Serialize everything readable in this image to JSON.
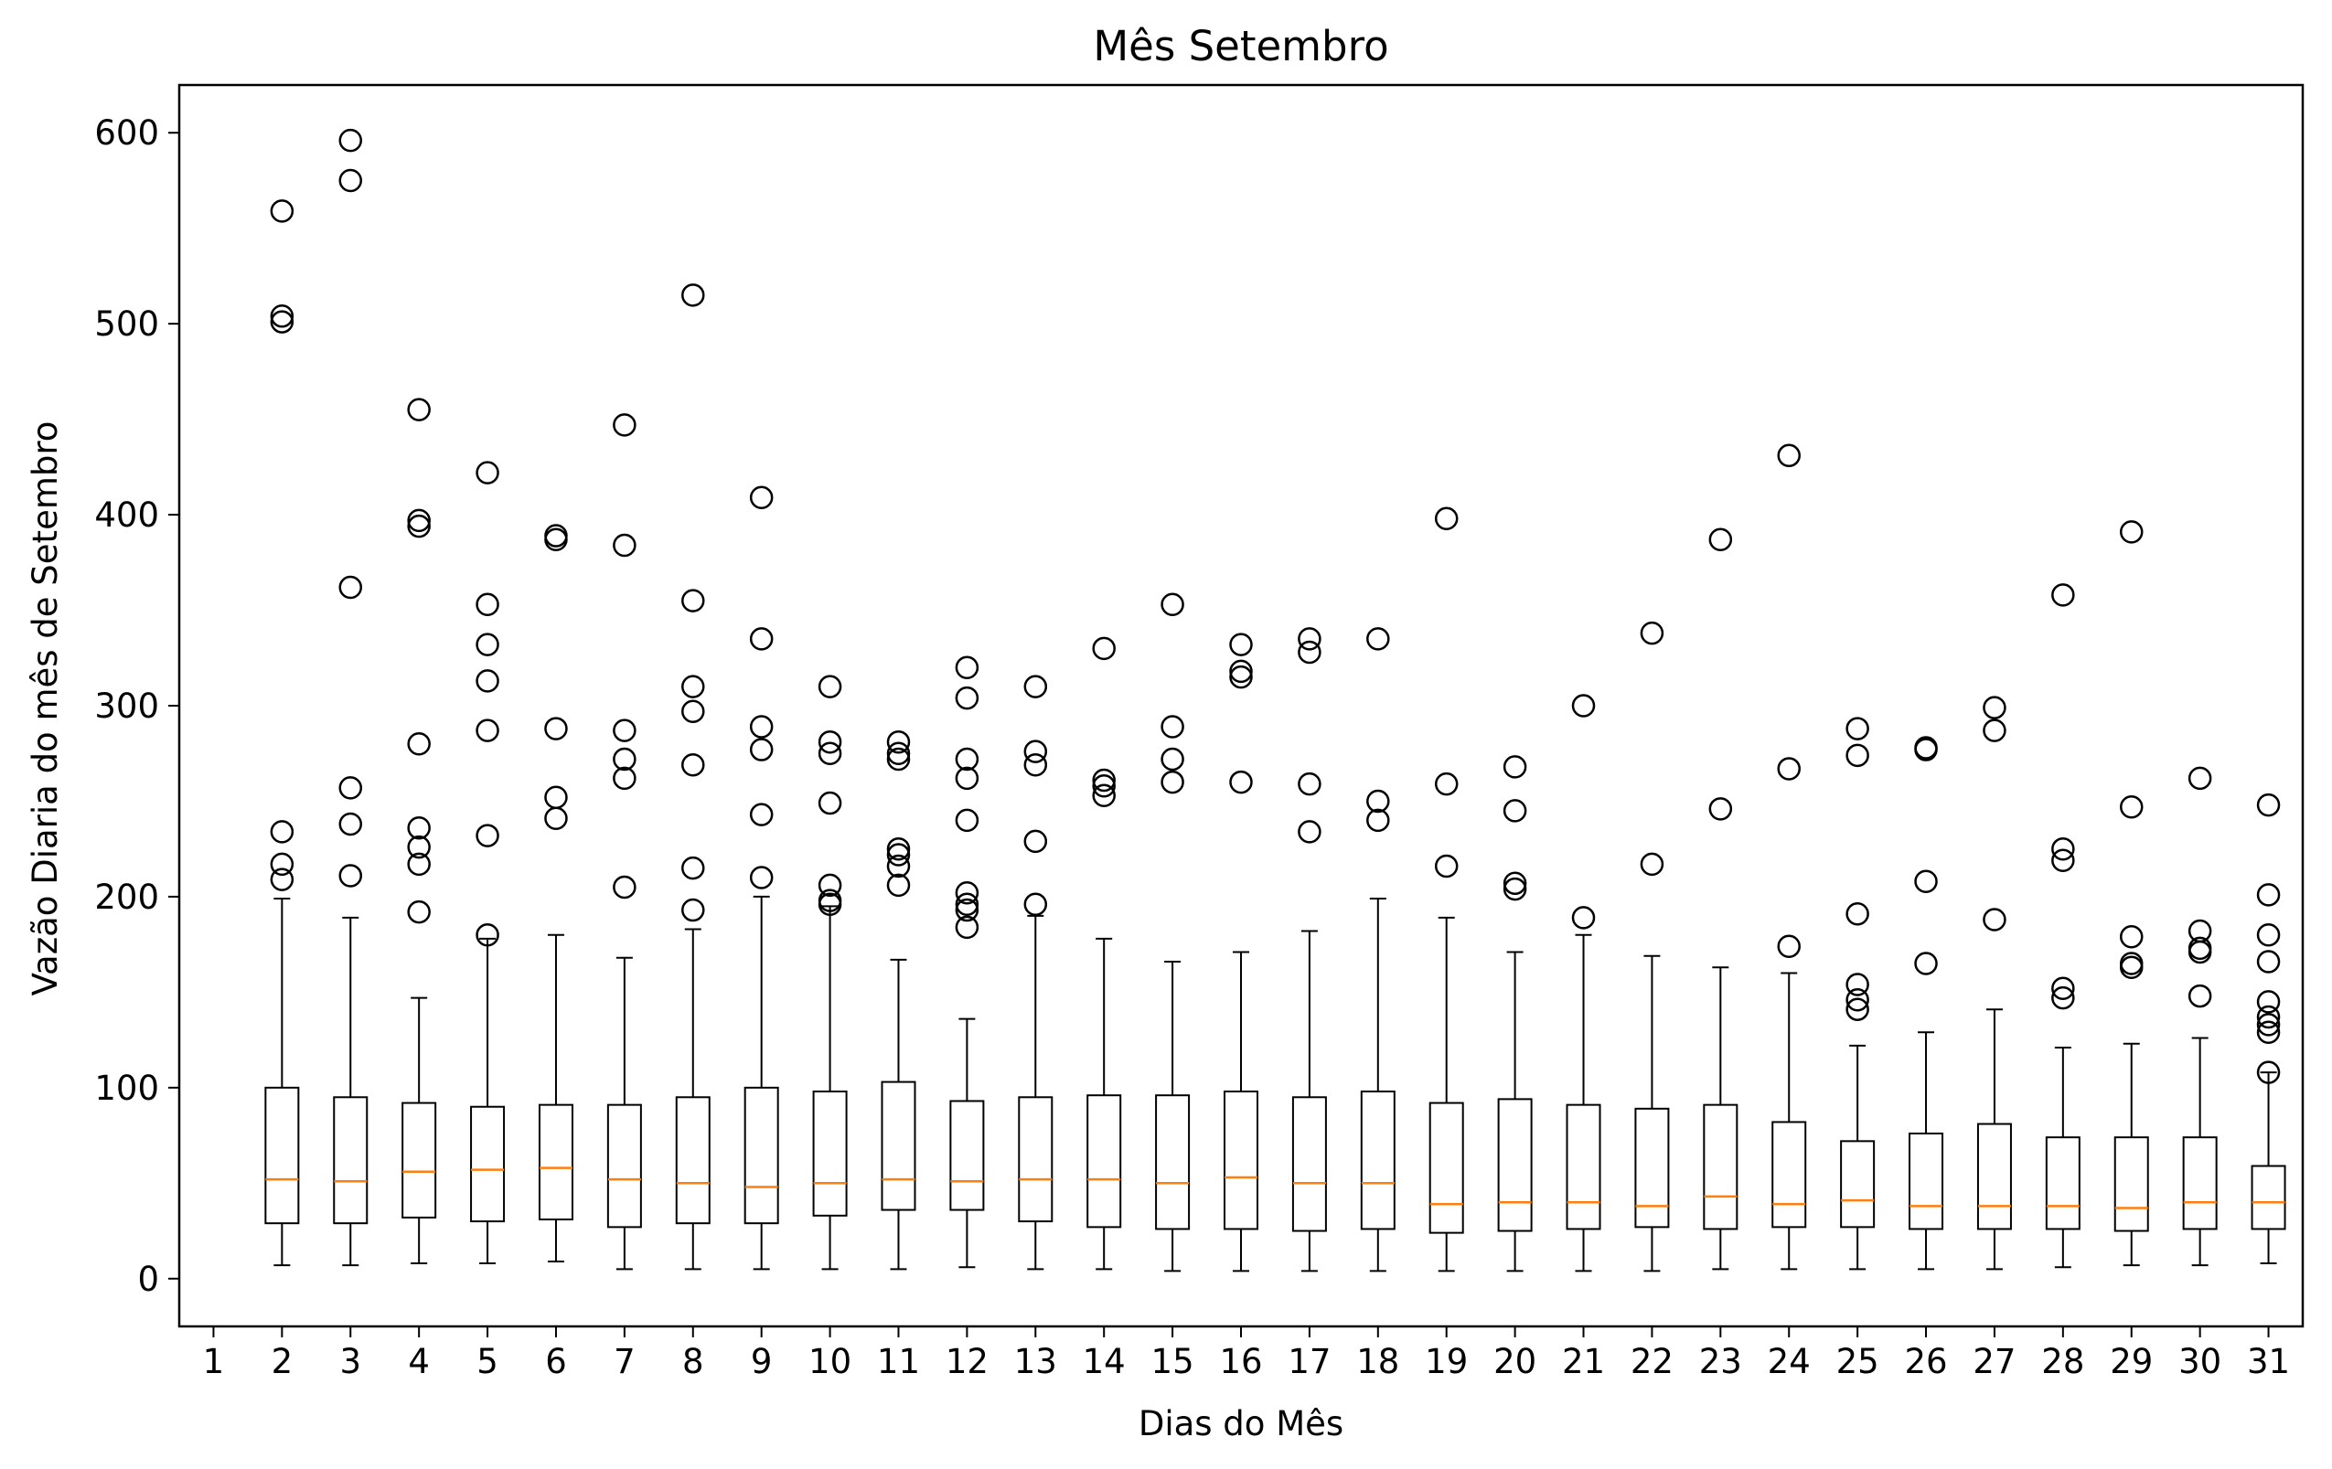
{
  "chart_data": {
    "type": "box",
    "title": "Mês Setembro",
    "xlabel": "Dias do Mês",
    "ylabel": "Vazão Diaria do mês de Setembro",
    "x_ticks": [
      "1",
      "2",
      "3",
      "4",
      "5",
      "6",
      "7",
      "8",
      "9",
      "10",
      "11",
      "12",
      "13",
      "14",
      "15",
      "16",
      "17",
      "18",
      "19",
      "20",
      "21",
      "22",
      "23",
      "24",
      "25",
      "26",
      "27",
      "28",
      "29",
      "30",
      "31"
    ],
    "y_ticks": [
      0,
      100,
      200,
      300,
      400,
      500,
      600
    ],
    "xlim": [
      0.5,
      31.5
    ],
    "ylim": [
      -25,
      625
    ],
    "grid": false,
    "colors": {
      "box": "#000000",
      "median": "#ff7f0e",
      "flier": "#000000",
      "background": "#ffffff"
    },
    "boxes": [
      {
        "day": "2",
        "whisker_low": 7,
        "q1": 29,
        "median": 52,
        "q3": 100,
        "whisker_high": 199,
        "fliers": [
          209,
          217,
          234,
          501,
          504,
          559
        ]
      },
      {
        "day": "3",
        "whisker_low": 7,
        "q1": 29,
        "median": 51,
        "q3": 95,
        "whisker_high": 189,
        "fliers": [
          211,
          238,
          257,
          362,
          575,
          596
        ]
      },
      {
        "day": "4",
        "whisker_low": 8,
        "q1": 32,
        "median": 56,
        "q3": 92,
        "whisker_high": 147,
        "fliers": [
          192,
          217,
          226,
          236,
          280,
          394,
          397,
          455
        ]
      },
      {
        "day": "5",
        "whisker_low": 8,
        "q1": 30,
        "median": 57,
        "q3": 90,
        "whisker_high": 178,
        "fliers": [
          180,
          232,
          287,
          313,
          332,
          353,
          422
        ]
      },
      {
        "day": "6",
        "whisker_low": 9,
        "q1": 31,
        "median": 58,
        "q3": 91,
        "whisker_high": 180,
        "fliers": [
          241,
          252,
          288,
          387,
          389
        ]
      },
      {
        "day": "7",
        "whisker_low": 5,
        "q1": 27,
        "median": 52,
        "q3": 91,
        "whisker_high": 168,
        "fliers": [
          205,
          262,
          272,
          287,
          384,
          447
        ]
      },
      {
        "day": "8",
        "whisker_low": 5,
        "q1": 29,
        "median": 50,
        "q3": 95,
        "whisker_high": 183,
        "fliers": [
          193,
          215,
          269,
          297,
          310,
          355,
          515
        ]
      },
      {
        "day": "9",
        "whisker_low": 5,
        "q1": 29,
        "median": 48,
        "q3": 100,
        "whisker_high": 200,
        "fliers": [
          210,
          243,
          277,
          289,
          335,
          409
        ]
      },
      {
        "day": "10",
        "whisker_low": 5,
        "q1": 33,
        "median": 50,
        "q3": 98,
        "whisker_high": 195,
        "fliers": [
          196,
          198,
          206,
          249,
          275,
          281,
          310
        ]
      },
      {
        "day": "11",
        "whisker_low": 5,
        "q1": 36,
        "median": 52,
        "q3": 103,
        "whisker_high": 167,
        "fliers": [
          206,
          216,
          222,
          225,
          272,
          275,
          281
        ]
      },
      {
        "day": "12",
        "whisker_low": 6,
        "q1": 36,
        "median": 51,
        "q3": 93,
        "whisker_high": 136,
        "fliers": [
          184,
          193,
          196,
          202,
          240,
          262,
          272,
          304,
          320
        ]
      },
      {
        "day": "13",
        "whisker_low": 5,
        "q1": 30,
        "median": 52,
        "q3": 95,
        "whisker_high": 190,
        "fliers": [
          196,
          229,
          269,
          276,
          310
        ]
      },
      {
        "day": "14",
        "whisker_low": 5,
        "q1": 27,
        "median": 52,
        "q3": 96,
        "whisker_high": 178,
        "fliers": [
          253,
          258,
          261,
          330
        ]
      },
      {
        "day": "15",
        "whisker_low": 4,
        "q1": 26,
        "median": 50,
        "q3": 96,
        "whisker_high": 166,
        "fliers": [
          260,
          272,
          289,
          353
        ]
      },
      {
        "day": "16",
        "whisker_low": 4,
        "q1": 26,
        "median": 53,
        "q3": 98,
        "whisker_high": 171,
        "fliers": [
          260,
          315,
          318,
          332
        ]
      },
      {
        "day": "17",
        "whisker_low": 4,
        "q1": 25,
        "median": 50,
        "q3": 95,
        "whisker_high": 182,
        "fliers": [
          234,
          259,
          328,
          335
        ]
      },
      {
        "day": "18",
        "whisker_low": 4,
        "q1": 26,
        "median": 50,
        "q3": 98,
        "whisker_high": 199,
        "fliers": [
          240,
          250,
          335
        ]
      },
      {
        "day": "19",
        "whisker_low": 4,
        "q1": 24,
        "median": 39,
        "q3": 92,
        "whisker_high": 189,
        "fliers": [
          216,
          259,
          398
        ]
      },
      {
        "day": "20",
        "whisker_low": 4,
        "q1": 25,
        "median": 40,
        "q3": 94,
        "whisker_high": 171,
        "fliers": [
          204,
          207,
          245,
          268
        ]
      },
      {
        "day": "21",
        "whisker_low": 4,
        "q1": 26,
        "median": 40,
        "q3": 91,
        "whisker_high": 180,
        "fliers": [
          189,
          300
        ]
      },
      {
        "day": "22",
        "whisker_low": 4,
        "q1": 27,
        "median": 38,
        "q3": 89,
        "whisker_high": 169,
        "fliers": [
          217,
          338
        ]
      },
      {
        "day": "23",
        "whisker_low": 5,
        "q1": 26,
        "median": 43,
        "q3": 91,
        "whisker_high": 163,
        "fliers": [
          246,
          387
        ]
      },
      {
        "day": "24",
        "whisker_low": 5,
        "q1": 27,
        "median": 39,
        "q3": 82,
        "whisker_high": 160,
        "fliers": [
          174,
          267,
          431
        ]
      },
      {
        "day": "25",
        "whisker_low": 5,
        "q1": 27,
        "median": 41,
        "q3": 72,
        "whisker_high": 122,
        "fliers": [
          141,
          146,
          154,
          191,
          274,
          288
        ]
      },
      {
        "day": "26",
        "whisker_low": 5,
        "q1": 26,
        "median": 38,
        "q3": 76,
        "whisker_high": 129,
        "fliers": [
          165,
          208,
          277,
          278
        ]
      },
      {
        "day": "27",
        "whisker_low": 5,
        "q1": 26,
        "median": 38,
        "q3": 81,
        "whisker_high": 141,
        "fliers": [
          188,
          287,
          299
        ]
      },
      {
        "day": "28",
        "whisker_low": 6,
        "q1": 26,
        "median": 38,
        "q3": 74,
        "whisker_high": 121,
        "fliers": [
          147,
          152,
          219,
          225,
          358
        ]
      },
      {
        "day": "29",
        "whisker_low": 7,
        "q1": 25,
        "median": 37,
        "q3": 74,
        "whisker_high": 123,
        "fliers": [
          163,
          165,
          179,
          247,
          391
        ]
      },
      {
        "day": "30",
        "whisker_low": 7,
        "q1": 26,
        "median": 40,
        "q3": 74,
        "whisker_high": 126,
        "fliers": [
          148,
          171,
          173,
          182,
          262
        ]
      },
      {
        "day": "31",
        "whisker_low": 8,
        "q1": 26,
        "median": 40,
        "q3": 59,
        "whisker_high": 108,
        "fliers": [
          108,
          129,
          133,
          137,
          145,
          166,
          180,
          201,
          248
        ]
      }
    ]
  }
}
